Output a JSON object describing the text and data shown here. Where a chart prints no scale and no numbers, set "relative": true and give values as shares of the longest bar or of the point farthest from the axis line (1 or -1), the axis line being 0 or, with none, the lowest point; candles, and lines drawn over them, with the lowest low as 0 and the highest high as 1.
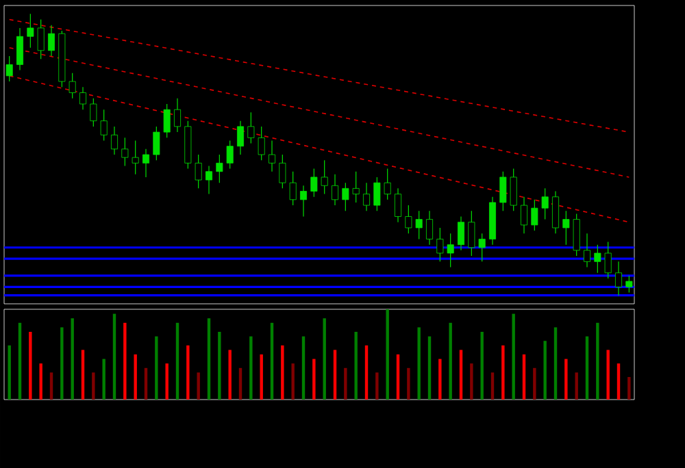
{
  "chart_data": [
    {
      "type": "candlestick",
      "relative": true,
      "color": "#00e000",
      "categories": [
        null,
        null,
        null,
        null,
        null,
        null,
        null,
        null,
        null,
        null,
        null,
        null,
        null,
        null,
        null,
        null,
        null,
        null,
        null,
        null,
        null,
        null,
        null,
        null,
        null,
        null,
        null,
        null,
        null,
        null,
        null,
        null,
        null,
        null,
        null,
        null,
        null,
        null,
        null,
        null,
        null,
        null,
        null,
        null,
        null,
        null,
        null,
        null,
        null,
        null,
        null,
        null,
        null,
        null,
        null,
        null,
        null,
        null,
        null,
        null
      ],
      "ohlc": [
        [
          0.78,
          0.85,
          0.76,
          0.82
        ],
        [
          0.82,
          0.95,
          0.8,
          0.92
        ],
        [
          0.92,
          1.0,
          0.88,
          0.95
        ],
        [
          0.95,
          0.98,
          0.84,
          0.87
        ],
        [
          0.87,
          0.96,
          0.85,
          0.93
        ],
        [
          0.93,
          0.94,
          0.74,
          0.76
        ],
        [
          0.76,
          0.79,
          0.7,
          0.72
        ],
        [
          0.72,
          0.74,
          0.66,
          0.68
        ],
        [
          0.68,
          0.7,
          0.6,
          0.62
        ],
        [
          0.62,
          0.66,
          0.55,
          0.57
        ],
        [
          0.57,
          0.6,
          0.5,
          0.52
        ],
        [
          0.52,
          0.56,
          0.46,
          0.49
        ],
        [
          0.49,
          0.55,
          0.43,
          0.47
        ],
        [
          0.47,
          0.52,
          0.42,
          0.5
        ],
        [
          0.5,
          0.6,
          0.48,
          0.58
        ],
        [
          0.58,
          0.68,
          0.56,
          0.66
        ],
        [
          0.66,
          0.7,
          0.58,
          0.6
        ],
        [
          0.6,
          0.62,
          0.45,
          0.47
        ],
        [
          0.47,
          0.5,
          0.38,
          0.41
        ],
        [
          0.41,
          0.46,
          0.36,
          0.44
        ],
        [
          0.44,
          0.5,
          0.4,
          0.47
        ],
        [
          0.47,
          0.55,
          0.45,
          0.53
        ],
        [
          0.53,
          0.62,
          0.5,
          0.6
        ],
        [
          0.6,
          0.65,
          0.54,
          0.56
        ],
        [
          0.56,
          0.6,
          0.48,
          0.5
        ],
        [
          0.5,
          0.55,
          0.44,
          0.47
        ],
        [
          0.47,
          0.5,
          0.38,
          0.4
        ],
        [
          0.4,
          0.44,
          0.32,
          0.34
        ],
        [
          0.34,
          0.39,
          0.28,
          0.37
        ],
        [
          0.37,
          0.45,
          0.35,
          0.42
        ],
        [
          0.42,
          0.48,
          0.36,
          0.39
        ],
        [
          0.39,
          0.43,
          0.32,
          0.34
        ],
        [
          0.34,
          0.4,
          0.3,
          0.38
        ],
        [
          0.38,
          0.44,
          0.33,
          0.36
        ],
        [
          0.36,
          0.4,
          0.3,
          0.32
        ],
        [
          0.32,
          0.42,
          0.3,
          0.4
        ],
        [
          0.4,
          0.45,
          0.34,
          0.36
        ],
        [
          0.36,
          0.38,
          0.26,
          0.28
        ],
        [
          0.28,
          0.32,
          0.22,
          0.24
        ],
        [
          0.24,
          0.3,
          0.2,
          0.27
        ],
        [
          0.27,
          0.3,
          0.18,
          0.2
        ],
        [
          0.2,
          0.24,
          0.12,
          0.15
        ],
        [
          0.15,
          0.22,
          0.1,
          0.18
        ],
        [
          0.18,
          0.28,
          0.16,
          0.26
        ],
        [
          0.26,
          0.3,
          0.14,
          0.17
        ],
        [
          0.17,
          0.22,
          0.12,
          0.2
        ],
        [
          0.2,
          0.35,
          0.18,
          0.33
        ],
        [
          0.33,
          0.44,
          0.3,
          0.42
        ],
        [
          0.42,
          0.45,
          0.3,
          0.32
        ],
        [
          0.32,
          0.35,
          0.22,
          0.25
        ],
        [
          0.25,
          0.34,
          0.23,
          0.31
        ],
        [
          0.31,
          0.38,
          0.27,
          0.35
        ],
        [
          0.35,
          0.37,
          0.22,
          0.24
        ],
        [
          0.24,
          0.3,
          0.18,
          0.27
        ],
        [
          0.27,
          0.29,
          0.14,
          0.16
        ],
        [
          0.16,
          0.22,
          0.1,
          0.12
        ],
        [
          0.12,
          0.18,
          0.08,
          0.15
        ],
        [
          0.15,
          0.19,
          0.06,
          0.08
        ],
        [
          0.08,
          0.12,
          0.0,
          0.03
        ],
        [
          0.03,
          0.07,
          0.01,
          0.05
        ]
      ],
      "series": [
        {
          "type": "line",
          "color": "#e00000",
          "line_style": "dashed",
          "values": [
            0.98,
            null,
            null,
            null,
            null,
            null,
            null,
            null,
            null,
            null,
            null,
            null,
            null,
            null,
            null,
            null,
            null,
            null,
            null,
            null,
            null,
            null,
            null,
            null,
            null,
            null,
            null,
            null,
            null,
            null,
            null,
            null,
            null,
            null,
            null,
            null,
            null,
            null,
            null,
            null,
            null,
            null,
            null,
            null,
            null,
            null,
            null,
            null,
            null,
            null,
            null,
            null,
            null,
            null,
            null,
            null,
            null,
            null,
            null,
            0.58
          ]
        },
        {
          "type": "line",
          "color": "#e00000",
          "line_style": "dashed",
          "values": [
            0.88,
            null,
            null,
            null,
            null,
            null,
            null,
            null,
            null,
            null,
            null,
            null,
            null,
            null,
            null,
            null,
            null,
            null,
            null,
            null,
            null,
            null,
            null,
            null,
            null,
            null,
            null,
            null,
            null,
            null,
            null,
            null,
            null,
            null,
            null,
            null,
            null,
            null,
            null,
            null,
            null,
            null,
            null,
            null,
            null,
            null,
            null,
            null,
            null,
            null,
            null,
            null,
            null,
            null,
            null,
            null,
            null,
            null,
            null,
            0.42
          ]
        },
        {
          "type": "line",
          "color": "#e00000",
          "line_style": "dashed",
          "values": [
            0.78,
            null,
            null,
            null,
            null,
            null,
            null,
            null,
            null,
            null,
            null,
            null,
            null,
            null,
            null,
            null,
            null,
            null,
            null,
            null,
            null,
            null,
            null,
            null,
            null,
            null,
            null,
            null,
            null,
            null,
            null,
            null,
            null,
            null,
            null,
            null,
            null,
            null,
            null,
            null,
            null,
            null,
            null,
            null,
            null,
            null,
            null,
            null,
            null,
            null,
            null,
            null,
            null,
            null,
            null,
            null,
            null,
            null,
            null,
            0.26
          ]
        }
      ],
      "ref_lines": [
        {
          "axis": "y",
          "value": 0.17,
          "color": "#0000ff"
        },
        {
          "axis": "y",
          "value": 0.13,
          "color": "#0000ff"
        },
        {
          "axis": "y",
          "value": 0.07,
          "color": "#0000ff"
        },
        {
          "axis": "y",
          "value": 0.03,
          "color": "#0000ff"
        },
        {
          "axis": "y",
          "value": 0.0,
          "color": "#0000ff"
        }
      ]
    },
    {
      "type": "bar",
      "relative": true,
      "categories": [
        null,
        null,
        null,
        null,
        null,
        null,
        null,
        null,
        null,
        null,
        null,
        null,
        null,
        null,
        null,
        null,
        null,
        null,
        null,
        null,
        null,
        null,
        null,
        null,
        null,
        null,
        null,
        null,
        null,
        null,
        null,
        null,
        null,
        null,
        null,
        null,
        null,
        null,
        null,
        null,
        null,
        null,
        null,
        null,
        null,
        null,
        null,
        null,
        null,
        null,
        null,
        null,
        null,
        null,
        null,
        null,
        null,
        null,
        null,
        null
      ],
      "values": [
        0.6,
        0.85,
        0.75,
        0.4,
        0.3,
        0.8,
        0.9,
        0.55,
        0.3,
        0.45,
        0.95,
        0.85,
        0.5,
        0.35,
        0.7,
        0.4,
        0.85,
        0.6,
        0.3,
        0.9,
        0.75,
        0.55,
        0.35,
        0.7,
        0.5,
        0.85,
        0.6,
        0.4,
        0.7,
        0.45,
        0.9,
        0.55,
        0.35,
        0.75,
        0.6,
        0.3,
        1.0,
        0.5,
        0.35,
        0.8,
        0.7,
        0.45,
        0.85,
        0.55,
        0.4,
        0.75,
        0.3,
        0.6,
        0.95,
        0.5,
        0.35,
        0.65,
        0.8,
        0.45,
        0.3,
        0.7,
        0.85,
        0.55,
        0.4,
        0.25
      ],
      "colors": [
        "#008000",
        "#008000",
        "#ff0000",
        "#ff0000",
        "#800000",
        "#008000",
        "#008000",
        "#ff0000",
        "#800000",
        "#008000",
        "#008000",
        "#ff0000",
        "#ff0000",
        "#800000",
        "#008000",
        "#ff0000",
        "#008000",
        "#ff0000",
        "#800000",
        "#008000",
        "#008000",
        "#ff0000",
        "#800000",
        "#008000",
        "#ff0000",
        "#008000",
        "#ff0000",
        "#800000",
        "#008000",
        "#ff0000",
        "#008000",
        "#ff0000",
        "#800000",
        "#008000",
        "#ff0000",
        "#800000",
        "#008000",
        "#ff0000",
        "#800000",
        "#008000",
        "#008000",
        "#ff0000",
        "#008000",
        "#ff0000",
        "#800000",
        "#008000",
        "#800000",
        "#ff0000",
        "#008000",
        "#ff0000",
        "#800000",
        "#008000",
        "#008000",
        "#ff0000",
        "#800000",
        "#008000",
        "#008000",
        "#ff0000",
        "#ff0000",
        "#800000"
      ]
    }
  ]
}
